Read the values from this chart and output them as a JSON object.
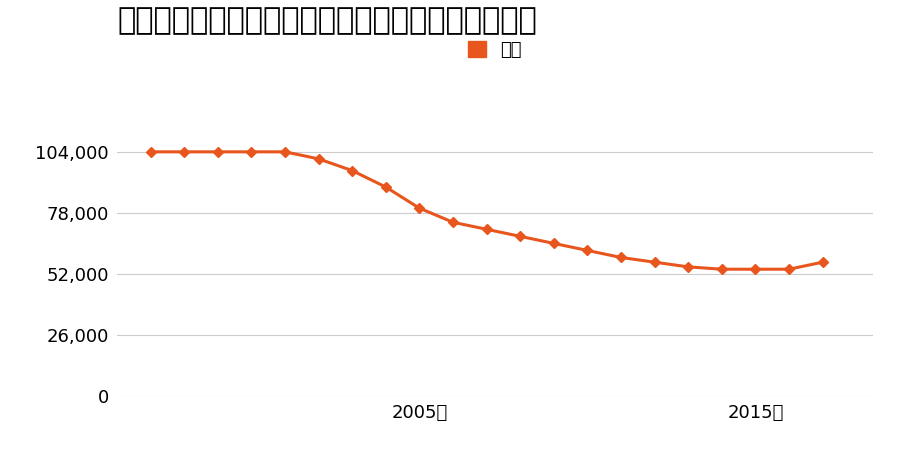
{
  "title": "山形県山形市小白川町５丁目１９番１７の地価推移",
  "legend_label": "価格",
  "line_color": "#e8561e",
  "marker_color": "#e8561e",
  "background_color": "#ffffff",
  "years": [
    1997,
    1998,
    1999,
    2000,
    2001,
    2002,
    2003,
    2004,
    2005,
    2006,
    2007,
    2008,
    2009,
    2010,
    2011,
    2012,
    2013,
    2014,
    2015,
    2016,
    2017
  ],
  "values": [
    104000,
    104000,
    104000,
    104000,
    104000,
    101000,
    96000,
    89000,
    80000,
    74000,
    71000,
    68000,
    65000,
    62000,
    59000,
    57000,
    55000,
    54000,
    54000,
    54000,
    57000
  ],
  "yticks": [
    0,
    26000,
    52000,
    78000,
    104000
  ],
  "xtick_labels": [
    "2005年",
    "2015年"
  ],
  "xtick_positions": [
    2005,
    2015
  ],
  "ylim": [
    0,
    115000
  ],
  "xlim_start": 1996,
  "xlim_end": 2018.5,
  "title_fontsize": 22,
  "axis_fontsize": 13,
  "legend_fontsize": 13,
  "grid_color": "#cccccc"
}
